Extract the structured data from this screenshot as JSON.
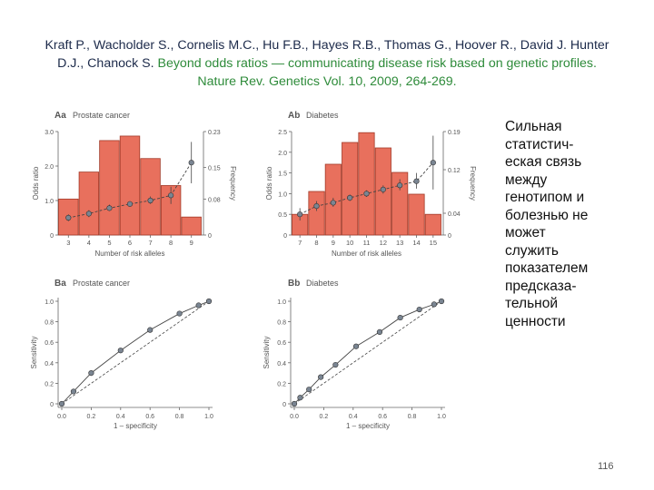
{
  "citation": {
    "authors": "Kraft P., Wacholder S., Cornelis M.C., Hu F.B., Hayes R.B., Thomas G., Hoover R., David J. Hunter D.J., Chanock S.",
    "title": "Beyond odds ratios — communicating disease risk based on genetic profiles.",
    "journal": "Nature Rev. Genetics Vol. 10, 2009, 264-269."
  },
  "side_text": [
    "Сильная",
    "статистич-",
    "еская связь",
    "между",
    "генотипом и",
    "болезнью не",
    "может",
    "служить",
    "показателем",
    "предсказа-",
    "тельной",
    "ценности"
  ],
  "page_number": "116",
  "colors": {
    "bar_fill": "#e8705d",
    "bar_stroke": "#a23a28",
    "line": "#444444",
    "point": "#7a8592",
    "citation_text": "#1c2a4a",
    "accent_green": "#2e8b3a"
  },
  "chart_data": [
    {
      "type": "bar",
      "id": "Aa",
      "panel_label": "Aa",
      "title": "Prostate cancer",
      "xlabel": "Number of risk alleles",
      "ylabel": "Odds ratio",
      "y2label": "Frequency",
      "categories": [
        "3",
        "4",
        "5",
        "6",
        "7",
        "8",
        "9"
      ],
      "xticks": [
        "3",
        "4",
        "5",
        "6",
        "7",
        "8",
        "9"
      ],
      "ylim": [
        0,
        3.0
      ],
      "yticks": [
        "0",
        "1.0",
        "2.0",
        "3.0"
      ],
      "y2lim": [
        0,
        0.23
      ],
      "y2ticks": [
        "0",
        "0.08",
        "0.15",
        "0.23"
      ],
      "series": [
        {
          "name": "Frequency",
          "axis": "right",
          "values": [
            0.08,
            0.14,
            0.21,
            0.22,
            0.17,
            0.11,
            0.04
          ]
        },
        {
          "name": "Odds ratio",
          "axis": "left",
          "type": "line",
          "x": [
            3,
            4,
            5,
            6,
            7,
            8,
            9
          ],
          "values": [
            0.5,
            0.62,
            0.78,
            0.9,
            1.0,
            1.15,
            2.1
          ],
          "err_low": [
            0.4,
            0.52,
            0.7,
            0.82,
            0.9,
            0.9,
            1.5
          ],
          "err_high": [
            0.6,
            0.72,
            0.88,
            0.98,
            1.12,
            1.4,
            2.7
          ]
        }
      ]
    },
    {
      "type": "bar",
      "id": "Ab",
      "panel_label": "Ab",
      "title": "Diabetes",
      "xlabel": "Number of risk alleles",
      "ylabel": "Odds ratio",
      "y2label": "Frequency",
      "categories": [
        "7",
        "8",
        "9",
        "10",
        "11",
        "12",
        "13",
        "14",
        "15"
      ],
      "xticks": [
        "7",
        "8",
        "9",
        "10",
        "11",
        "12",
        "13",
        "14",
        "15"
      ],
      "ylim": [
        0,
        2.5
      ],
      "yticks": [
        "0",
        "0.5",
        "1.0",
        "1.5",
        "2.0",
        "2.5"
      ],
      "y2lim": [
        0,
        0.19
      ],
      "y2ticks": [
        "0",
        "0.04",
        "0.12",
        "0.19"
      ],
      "series": [
        {
          "name": "Frequency",
          "axis": "right",
          "values": [
            0.038,
            0.08,
            0.13,
            0.17,
            0.188,
            0.16,
            0.115,
            0.075,
            0.038
          ]
        },
        {
          "name": "Odds ratio",
          "axis": "left",
          "type": "line",
          "x": [
            7,
            8,
            9,
            10,
            11,
            12,
            13,
            14,
            15
          ],
          "values": [
            0.5,
            0.7,
            0.78,
            0.9,
            1.0,
            1.1,
            1.2,
            1.3,
            1.75
          ],
          "err_low": [
            0.35,
            0.58,
            0.68,
            0.82,
            0.92,
            1.0,
            1.08,
            1.12,
            1.1
          ],
          "err_high": [
            0.65,
            0.82,
            0.9,
            0.98,
            1.08,
            1.2,
            1.35,
            1.5,
            2.4
          ]
        }
      ]
    },
    {
      "type": "line",
      "id": "Ba",
      "panel_label": "Ba",
      "title": "Prostate cancer",
      "xlabel": "1 – specificity",
      "ylabel": "Sensitivity",
      "xlim": [
        0,
        1.0
      ],
      "ylim": [
        0,
        1.0
      ],
      "xticks": [
        "0.0",
        "0.2",
        "0.4",
        "0.6",
        "0.8",
        "1.0"
      ],
      "yticks": [
        "0",
        "0.2",
        "0.4",
        "0.6",
        "0.8",
        "1.0"
      ],
      "series": [
        {
          "name": "ROC",
          "x": [
            0.0,
            0.08,
            0.2,
            0.4,
            0.6,
            0.8,
            0.93,
            1.0
          ],
          "y": [
            0.0,
            0.12,
            0.3,
            0.52,
            0.72,
            0.88,
            0.96,
            1.0
          ]
        },
        {
          "name": "Chance",
          "x": [
            0,
            1
          ],
          "y": [
            0,
            1
          ]
        }
      ]
    },
    {
      "type": "line",
      "id": "Bb",
      "panel_label": "Bb",
      "title": "Diabetes",
      "xlabel": "1 – specificity",
      "ylabel": "Sensitivity",
      "xlim": [
        0,
        1.0
      ],
      "ylim": [
        0,
        1.0
      ],
      "xticks": [
        "0.0",
        "0.2",
        "0.4",
        "0.6",
        "0.8",
        "1.0"
      ],
      "yticks": [
        "0",
        "0.2",
        "0.4",
        "0.6",
        "0.8",
        "1.0"
      ],
      "series": [
        {
          "name": "ROC",
          "x": [
            0.0,
            0.04,
            0.1,
            0.18,
            0.28,
            0.42,
            0.58,
            0.72,
            0.85,
            0.95,
            1.0
          ],
          "y": [
            0.0,
            0.06,
            0.14,
            0.26,
            0.38,
            0.56,
            0.7,
            0.84,
            0.92,
            0.97,
            1.0
          ]
        },
        {
          "name": "Chance",
          "x": [
            0,
            1
          ],
          "y": [
            0,
            1
          ]
        }
      ]
    }
  ]
}
